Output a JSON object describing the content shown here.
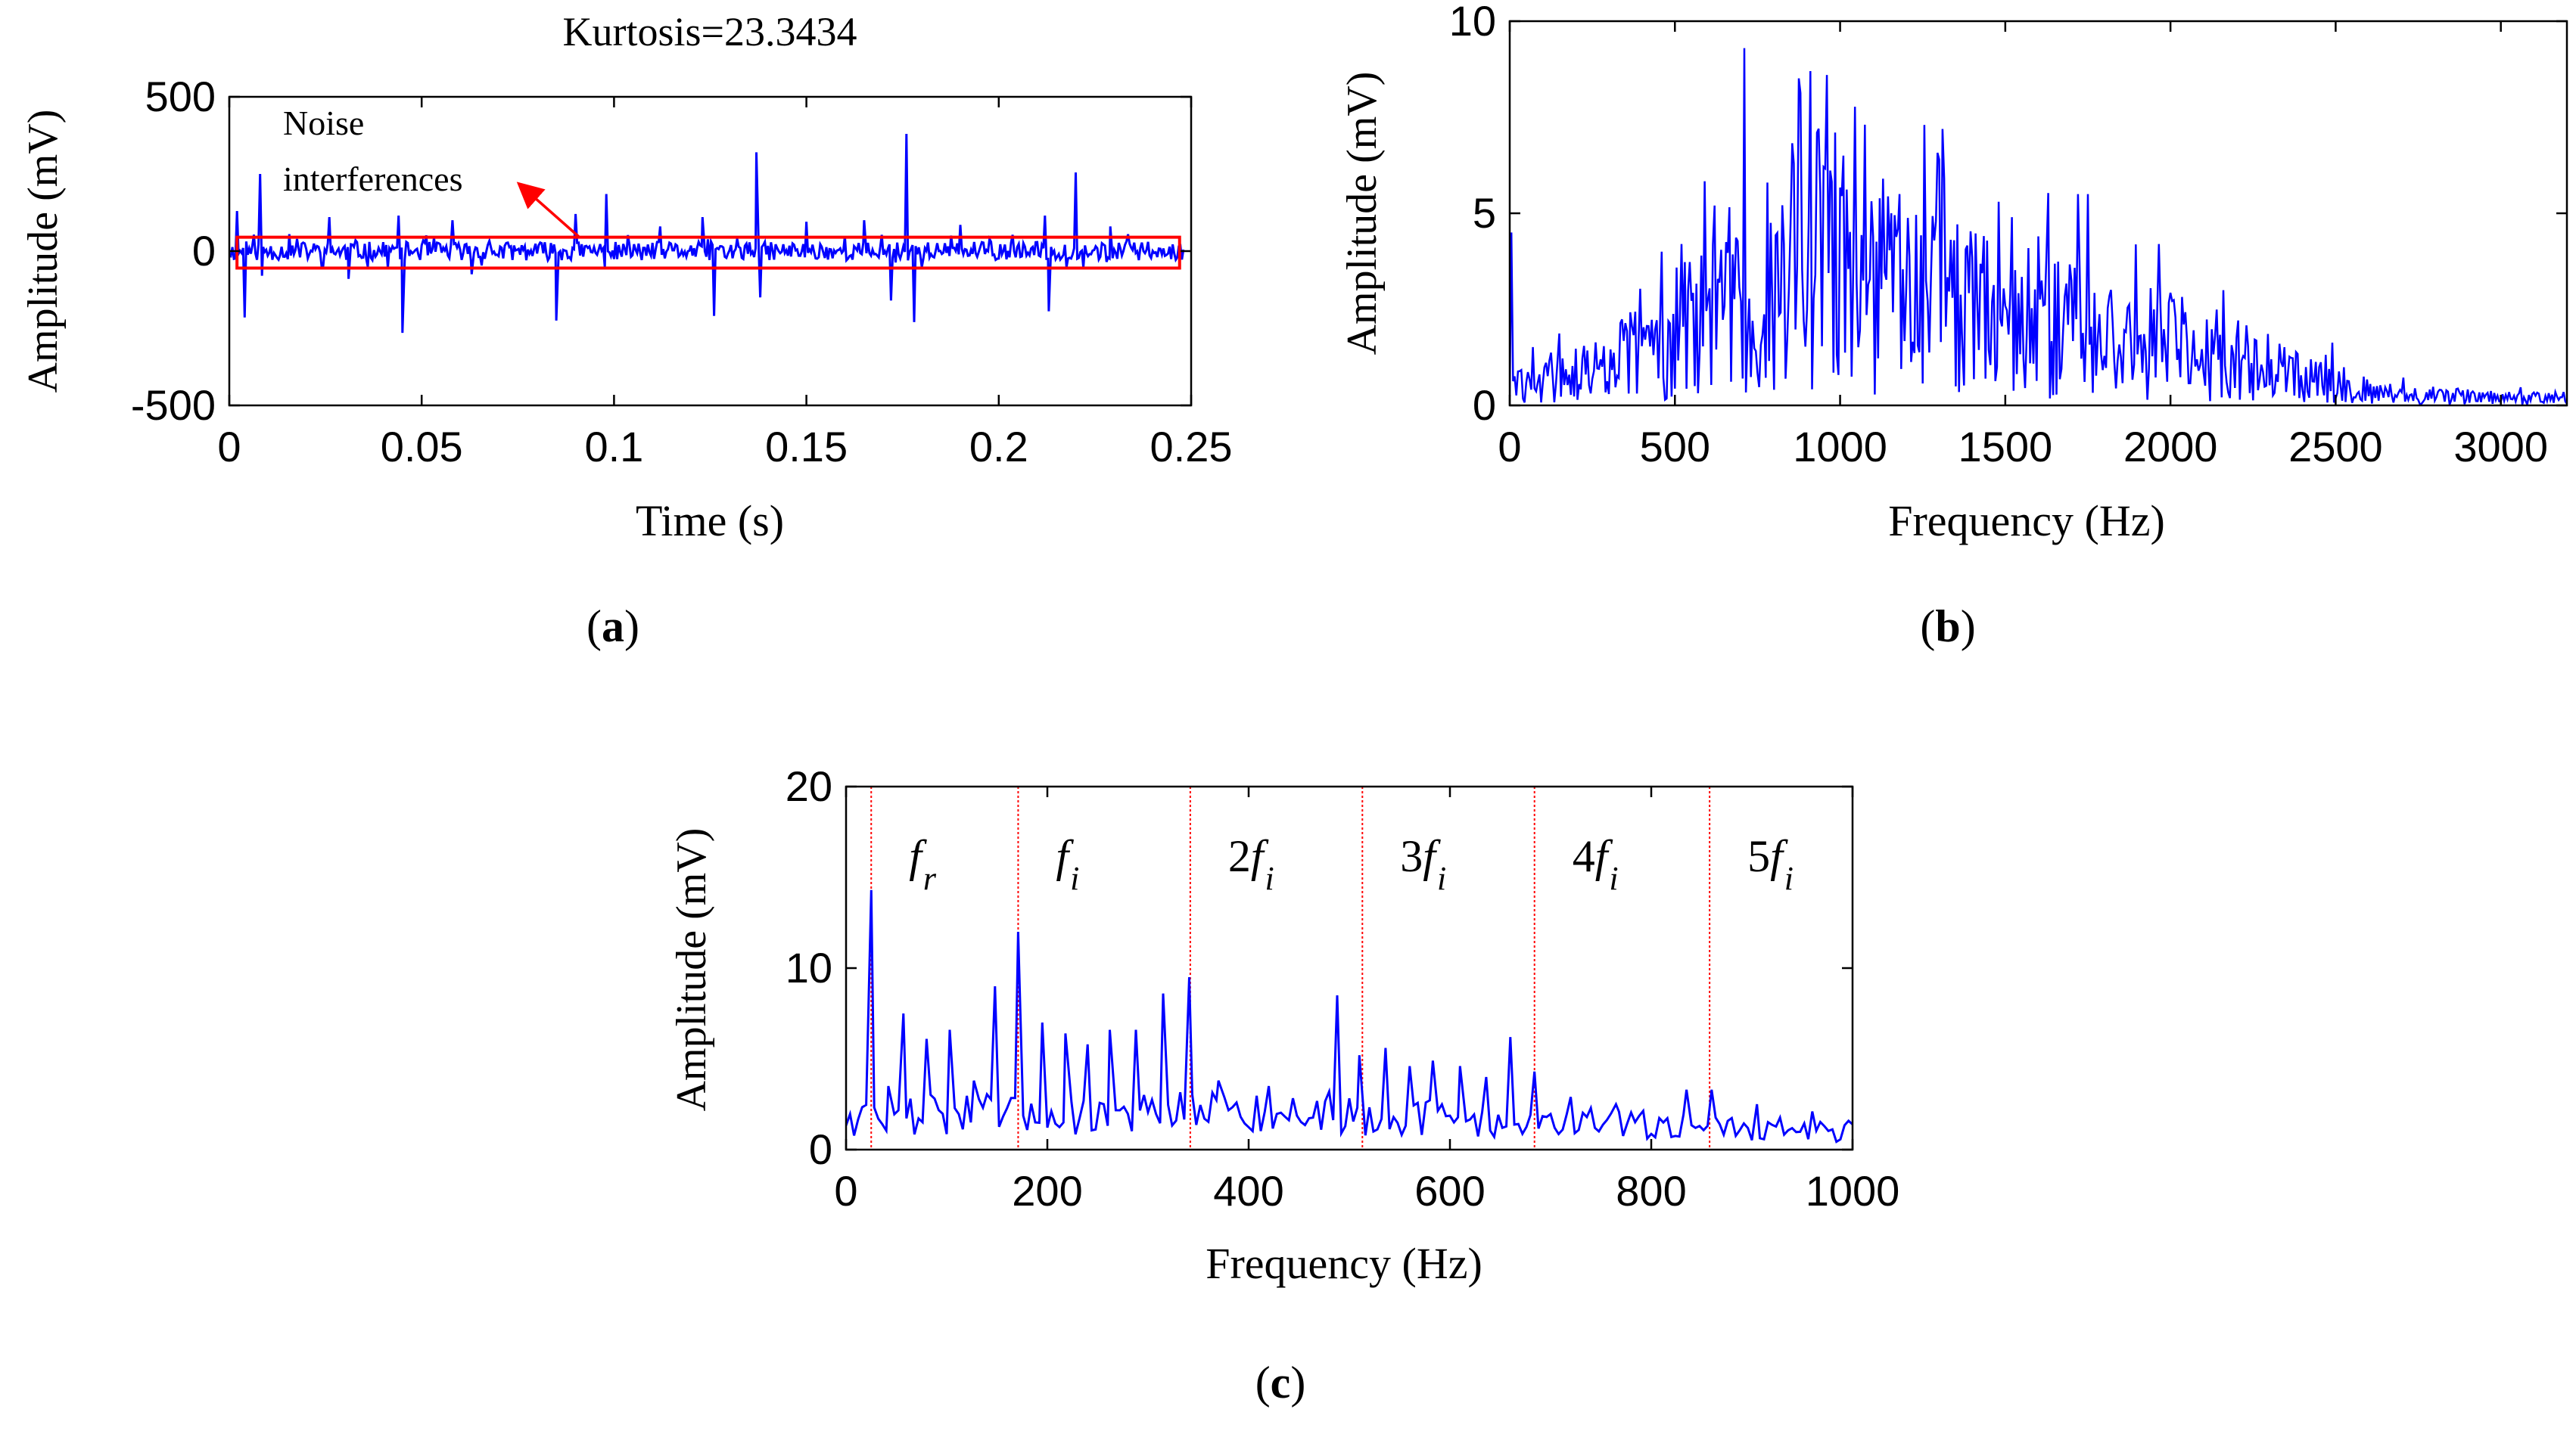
{
  "colors": {
    "signal": "#0000ff",
    "annotation": "#ff0000",
    "axis": "#000000",
    "background": "#ffffff"
  },
  "chart_data": [
    {
      "id": "a",
      "type": "line",
      "panel_label": "a",
      "title": "Kurtosis=23.3434",
      "xlabel": "Time (s)",
      "ylabel": "Amplitude (mV)",
      "xlim": [
        0,
        0.25
      ],
      "ylim": [
        -500,
        500
      ],
      "xticks": [
        0,
        0.05,
        0.1,
        0.15,
        0.2,
        0.25
      ],
      "xtick_labels": [
        "0",
        "0.05",
        "0.1",
        "0.15",
        "0.2",
        "0.25"
      ],
      "yticks": [
        500,
        0,
        -500
      ],
      "ytick_labels": [
        "500",
        "0",
        "-500"
      ],
      "annotation": {
        "line1": "Noise",
        "line2": "interferences"
      },
      "noise_band": [
        -55,
        45
      ],
      "duration_s": 0.248,
      "sample_count": 620,
      "baseline_amplitude": 30,
      "spikes": [
        {
          "t": 0.002,
          "v": 130
        },
        {
          "t": 0.004,
          "v": -215
        },
        {
          "t": 0.008,
          "v": 250
        },
        {
          "t": 0.0085,
          "v": -80
        },
        {
          "t": 0.026,
          "v": 110
        },
        {
          "t": 0.031,
          "v": -90
        },
        {
          "t": 0.044,
          "v": 115
        },
        {
          "t": 0.045,
          "v": -265
        },
        {
          "t": 0.058,
          "v": 100
        },
        {
          "t": 0.063,
          "v": -75
        },
        {
          "t": 0.085,
          "v": -225
        },
        {
          "t": 0.09,
          "v": 120
        },
        {
          "t": 0.098,
          "v": 185
        },
        {
          "t": 0.112,
          "v": 80
        },
        {
          "t": 0.123,
          "v": 110
        },
        {
          "t": 0.126,
          "v": -210
        },
        {
          "t": 0.137,
          "v": 320
        },
        {
          "t": 0.138,
          "v": -150
        },
        {
          "t": 0.15,
          "v": 95
        },
        {
          "t": 0.165,
          "v": 100
        },
        {
          "t": 0.172,
          "v": -160
        },
        {
          "t": 0.176,
          "v": 380
        },
        {
          "t": 0.178,
          "v": -230
        },
        {
          "t": 0.19,
          "v": 85
        },
        {
          "t": 0.212,
          "v": 115
        },
        {
          "t": 0.213,
          "v": -195
        },
        {
          "t": 0.22,
          "v": 255
        },
        {
          "t": 0.229,
          "v": 80
        }
      ]
    },
    {
      "id": "b",
      "type": "line",
      "panel_label": "b",
      "xlabel": "Frequency (Hz)",
      "ylabel": "Amplitude (mV)",
      "xlim": [
        0,
        3200
      ],
      "ylim": [
        0,
        10
      ],
      "xticks": [
        0,
        500,
        1000,
        1500,
        2000,
        2500,
        3000
      ],
      "xtick_labels": [
        "0",
        "500",
        "1000",
        "1500",
        "2000",
        "2500",
        "3000"
      ],
      "yticks": [
        10,
        5,
        0
      ],
      "ytick_labels": [
        "10",
        "5",
        "0"
      ],
      "sample_count": 640,
      "envelope": [
        [
          0,
          0.6
        ],
        [
          250,
          1.2
        ],
        [
          500,
          2.6
        ],
        [
          750,
          3.6
        ],
        [
          950,
          4.6
        ],
        [
          1100,
          4.1
        ],
        [
          1300,
          3.8
        ],
        [
          1500,
          3.2
        ],
        [
          1700,
          2.8
        ],
        [
          1900,
          2.3
        ],
        [
          2100,
          1.9
        ],
        [
          2300,
          1.4
        ],
        [
          2500,
          0.8
        ],
        [
          2700,
          0.35
        ],
        [
          3200,
          0.25
        ]
      ],
      "peaks": [
        {
          "f": 5,
          "a": 4.5
        },
        {
          "f": 460,
          "a": 4.0
        },
        {
          "f": 520,
          "a": 4.2
        },
        {
          "f": 620,
          "a": 5.2
        },
        {
          "f": 710,
          "a": 9.3
        },
        {
          "f": 780,
          "a": 5.8
        },
        {
          "f": 860,
          "a": 6.3
        },
        {
          "f": 910,
          "a": 8.7
        },
        {
          "f": 935,
          "a": 7.2
        },
        {
          "f": 960,
          "a": 8.6
        },
        {
          "f": 1010,
          "a": 6.5
        },
        {
          "f": 1130,
          "a": 5.9
        },
        {
          "f": 1180,
          "a": 5.5
        },
        {
          "f": 1255,
          "a": 7.3
        },
        {
          "f": 1300,
          "a": 6.4
        },
        {
          "f": 1480,
          "a": 5.3
        },
        {
          "f": 1600,
          "a": 4.4
        },
        {
          "f": 1720,
          "a": 5.5
        },
        {
          "f": 1965,
          "a": 4.2
        },
        {
          "f": 2160,
          "a": 3.0
        }
      ]
    },
    {
      "id": "c",
      "type": "line",
      "panel_label": "c",
      "xlabel": "Frequency (Hz)",
      "ylabel": "Amplitude (mV)",
      "xlim": [
        0,
        1000
      ],
      "ylim": [
        0,
        20
      ],
      "xticks": [
        0,
        200,
        400,
        600,
        800,
        1000
      ],
      "xtick_labels": [
        "0",
        "200",
        "400",
        "600",
        "800",
        "1000"
      ],
      "yticks": [
        20,
        10,
        0
      ],
      "ytick_labels": [
        "20",
        "10",
        "0"
      ],
      "sample_count": 250,
      "background_level": [
        [
          0,
          2.2
        ],
        [
          400,
          2.4
        ],
        [
          700,
          1.8
        ],
        [
          1000,
          1.2
        ]
      ],
      "peaks": [
        {
          "f": 25,
          "a": 14.3
        },
        {
          "f": 42,
          "a": 3.5
        },
        {
          "f": 57,
          "a": 7.5
        },
        {
          "f": 80,
          "a": 6.1
        },
        {
          "f": 103,
          "a": 6.6
        },
        {
          "f": 127,
          "a": 3.8
        },
        {
          "f": 148,
          "a": 9.0
        },
        {
          "f": 171,
          "a": 12.0
        },
        {
          "f": 195,
          "a": 7.0
        },
        {
          "f": 218,
          "a": 6.4
        },
        {
          "f": 240,
          "a": 5.8
        },
        {
          "f": 262,
          "a": 6.6
        },
        {
          "f": 288,
          "a": 6.6
        },
        {
          "f": 315,
          "a": 8.6
        },
        {
          "f": 341,
          "a": 9.5
        },
        {
          "f": 370,
          "a": 3.8
        },
        {
          "f": 420,
          "a": 3.5
        },
        {
          "f": 480,
          "a": 3.2
        },
        {
          "f": 488,
          "a": 8.5
        },
        {
          "f": 510,
          "a": 5.2
        },
        {
          "f": 536,
          "a": 5.6
        },
        {
          "f": 560,
          "a": 4.6
        },
        {
          "f": 583,
          "a": 4.9
        },
        {
          "f": 610,
          "a": 4.6
        },
        {
          "f": 636,
          "a": 4.0
        },
        {
          "f": 660,
          "a": 6.2
        },
        {
          "f": 684,
          "a": 4.3
        },
        {
          "f": 720,
          "a": 2.9
        },
        {
          "f": 765,
          "a": 2.5
        },
        {
          "f": 835,
          "a": 3.3
        },
        {
          "f": 860,
          "a": 3.3
        },
        {
          "f": 905,
          "a": 2.5
        },
        {
          "f": 960,
          "a": 2.1
        }
      ],
      "markers": [
        {
          "f": 25,
          "base": "",
          "sub": "r"
        },
        {
          "f": 171,
          "base": "",
          "sub": "i"
        },
        {
          "f": 342,
          "base": "2",
          "sub": "i"
        },
        {
          "f": 513,
          "base": "3",
          "sub": "i"
        },
        {
          "f": 684,
          "base": "4",
          "sub": "i"
        },
        {
          "f": 858,
          "base": "5",
          "sub": "i"
        }
      ],
      "marker_symbol": "f"
    }
  ]
}
